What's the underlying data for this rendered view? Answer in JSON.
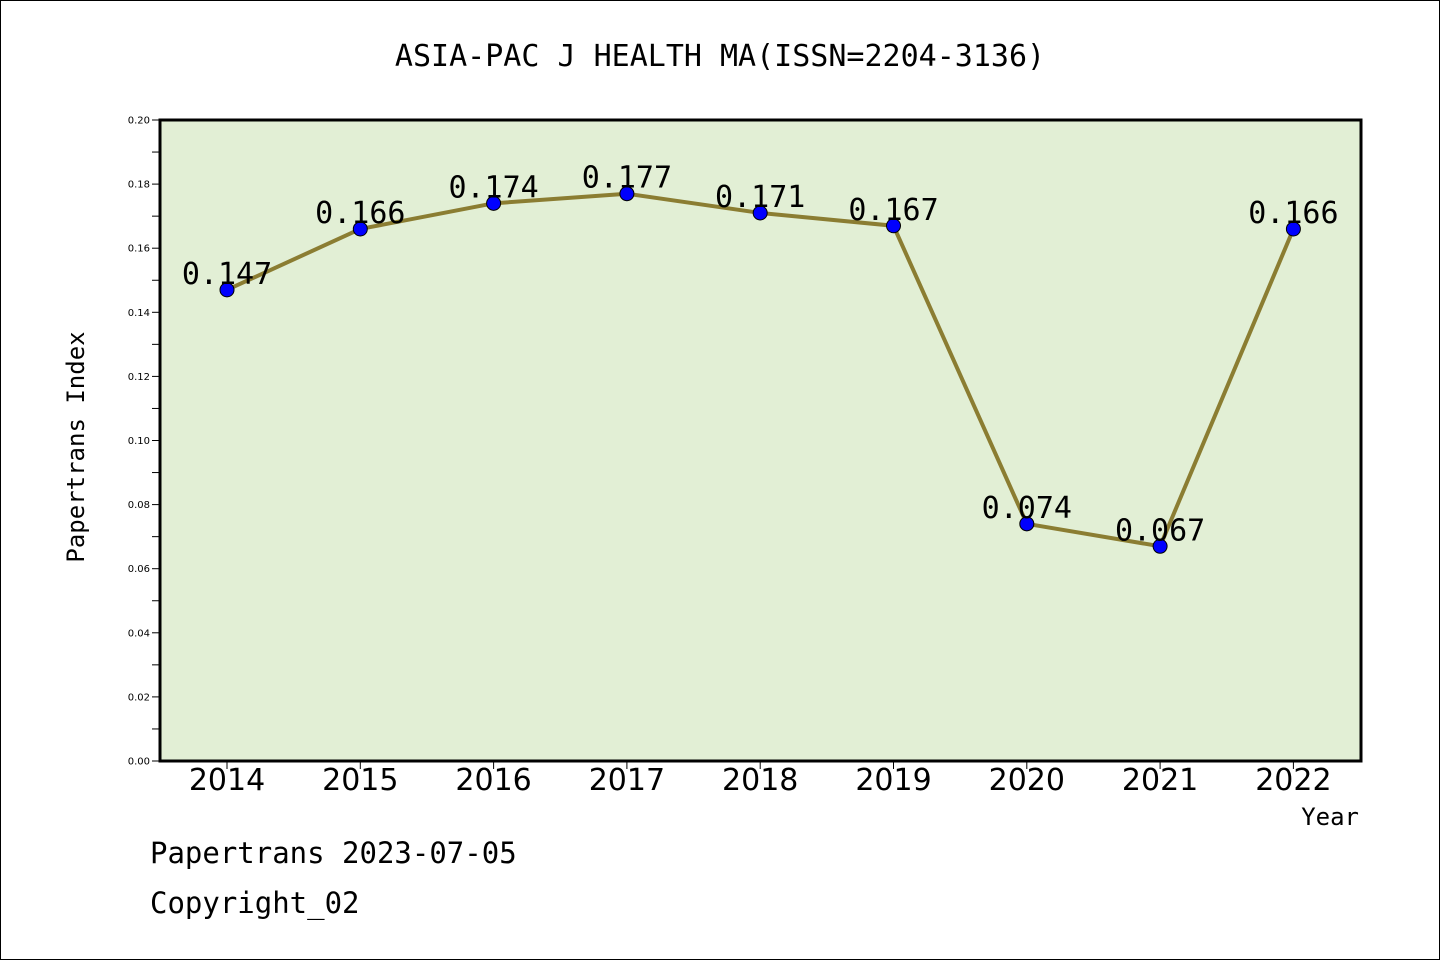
{
  "chart_data": {
    "type": "line",
    "title": "ASIA-PAC J HEALTH MA(ISSN=2204-3136)",
    "xlabel": "Year",
    "ylabel": "Papertrans Index",
    "categories": [
      "2014",
      "2015",
      "2016",
      "2017",
      "2018",
      "2019",
      "2020",
      "2021",
      "2022"
    ],
    "series": [
      {
        "values": [
          0.147,
          0.166,
          0.174,
          0.177,
          0.171,
          0.167,
          0.074,
          0.067,
          0.166
        ],
        "data_labels": [
          "0.147",
          "0.166",
          "0.174",
          "0.177",
          "0.171",
          "0.167",
          "0.074",
          "0.067",
          "0.166"
        ]
      }
    ],
    "ylim": [
      0,
      0.2
    ],
    "yticks": [
      "0.00",
      "0.02",
      "0.04",
      "0.06",
      "0.08",
      "0.10",
      "0.12",
      "0.14",
      "0.16",
      "0.18",
      "0.20"
    ],
    "grid": false,
    "colors": {
      "plot_background": "#e2efd5",
      "line": "#8b7d32",
      "marker": "#0000ff"
    }
  },
  "footer": {
    "line1": "Papertrans 2023-07-05",
    "line2": "Copyright_02"
  }
}
